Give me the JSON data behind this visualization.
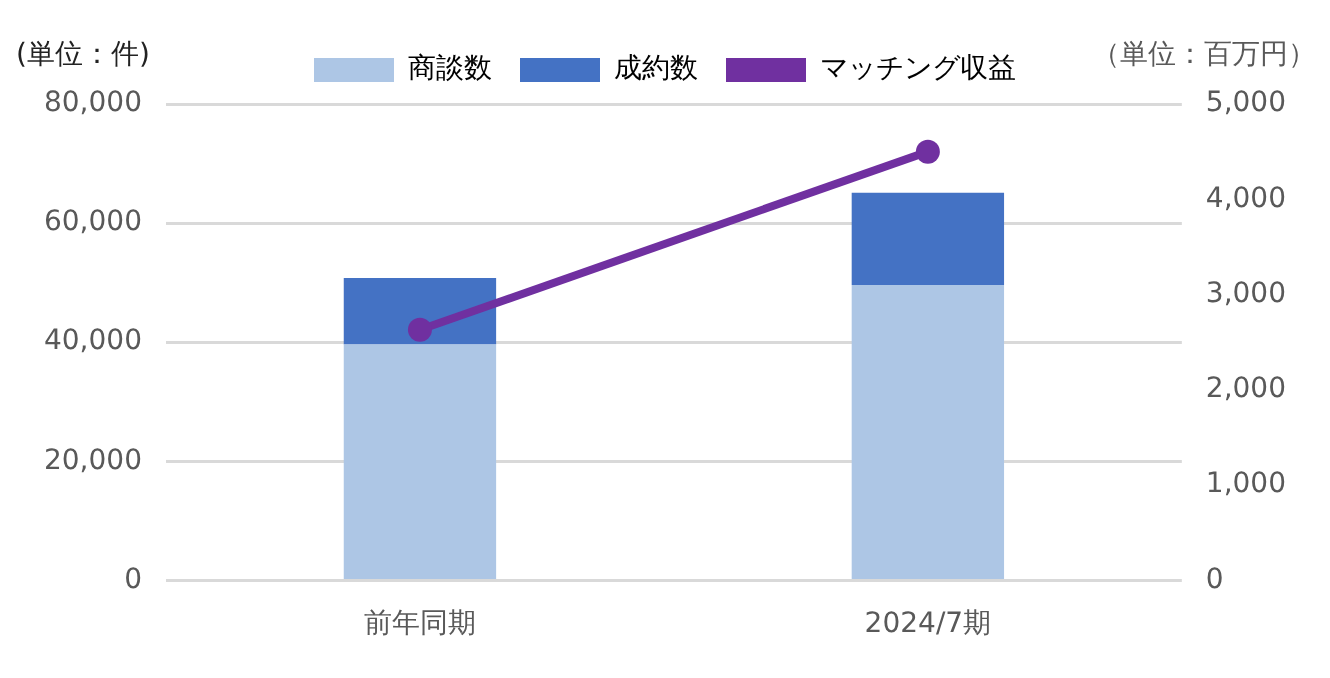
{
  "chart_data": {
    "type": "bar",
    "stacked": true,
    "ylabel": "(単位：件)",
    "y2label": "（単位：百万円）",
    "categories": [
      "前年同期",
      "2024/7期"
    ],
    "series": [
      {
        "name": "商談数",
        "color": "#adc6e5",
        "values": [
          39600,
          49600
        ]
      },
      {
        "name": "成約数",
        "color": "#4472c4",
        "values": [
          11200,
          15500
        ]
      },
      {
        "name": "マッチング収益",
        "type": "line",
        "axis": "y2",
        "color": "#7030a0",
        "marker": "circle",
        "values": [
          2630,
          4500
        ]
      }
    ],
    "ylim": [
      0,
      80000
    ],
    "yticks": [
      {
        "value": 0,
        "label": "0"
      },
      {
        "value": 20000,
        "label": "20,000"
      },
      {
        "value": 40000,
        "label": "40,000"
      },
      {
        "value": 60000,
        "label": "60,000"
      },
      {
        "value": 80000,
        "label": "80,000"
      }
    ],
    "y2lim": [
      0,
      5000
    ],
    "y2ticks": [
      {
        "value": 0,
        "label": "0"
      },
      {
        "value": 1000,
        "label": "1,000"
      },
      {
        "value": 2000,
        "label": "2,000"
      },
      {
        "value": 3000,
        "label": "3,000"
      },
      {
        "value": 4000,
        "label": "4,000"
      },
      {
        "value": 5000,
        "label": "5,000"
      }
    ],
    "grid": "y",
    "legend": "top"
  }
}
